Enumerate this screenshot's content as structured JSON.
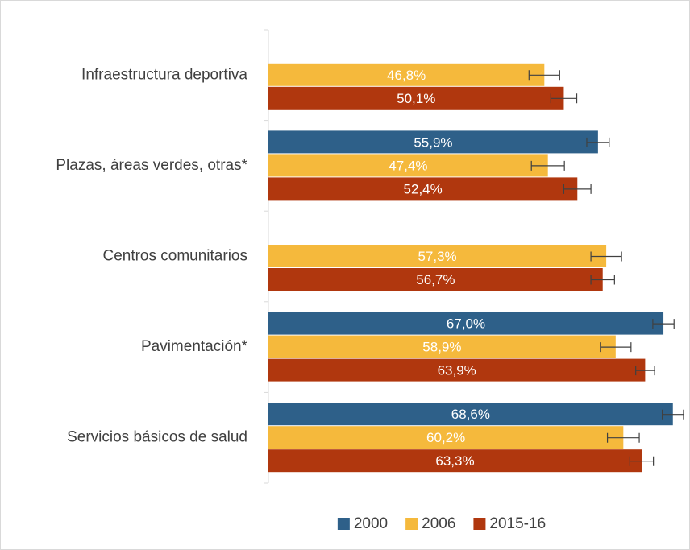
{
  "chart_data": {
    "type": "bar",
    "orientation": "horizontal",
    "categories": [
      "Infraestructura deportiva",
      "Plazas, áreas verdes, otras*",
      "Centros comunitarios",
      "Pavimentación*",
      "Servicios básicos de salud"
    ],
    "series": [
      {
        "name": "2000",
        "color": "#2e6089",
        "values": [
          null,
          55.9,
          null,
          67.0,
          68.6
        ],
        "value_labels": [
          null,
          "55,9%",
          null,
          "67,0%",
          "68,6%"
        ],
        "errors": [
          null,
          1.9,
          null,
          1.8,
          1.8
        ]
      },
      {
        "name": "2006",
        "color": "#f5b93c",
        "values": [
          46.8,
          47.4,
          57.3,
          58.9,
          60.2
        ],
        "value_labels": [
          "46,8%",
          "47,4%",
          "57,3%",
          "58,9%",
          "60,2%"
        ],
        "errors": [
          2.6,
          2.8,
          2.6,
          2.6,
          2.7
        ]
      },
      {
        "name": "2015-16",
        "color": "#b0370e",
        "values": [
          50.1,
          52.4,
          56.7,
          63.9,
          63.3
        ],
        "value_labels": [
          "50,1%",
          "52,4%",
          "56,7%",
          "63,9%",
          "63,3%"
        ],
        "errors": [
          2.2,
          2.3,
          2.0,
          1.6,
          2.0
        ]
      }
    ],
    "xlim": [
      0,
      70
    ],
    "legend": "bottom"
  }
}
